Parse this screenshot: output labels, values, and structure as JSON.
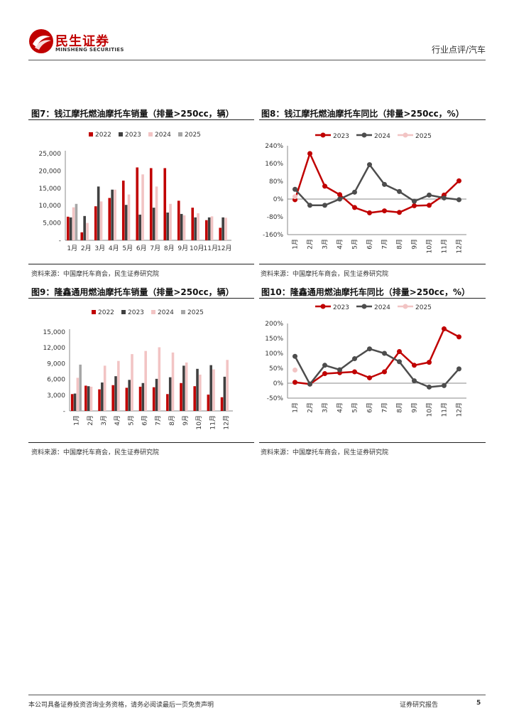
{
  "header": {
    "brand_cn": "民生证券",
    "brand_en": "MINSHENG SECURITIES",
    "category": "行业点评/汽车"
  },
  "colors": {
    "y2022": "#c00000",
    "y2023_bar": "#404040",
    "y2024_bar": "#f2c4c4",
    "y2025_bar": "#a6a6a6",
    "line2023": "#c00000",
    "line2024": "#4d4d4d",
    "line2025": "#f2c4c4"
  },
  "figures": {
    "fig7": {
      "title": "图7：钱江摩托燃油摩托车销量（排量>250cc，辆）",
      "source": "资料来源：中国摩托车商会，民生证券研究院"
    },
    "fig8": {
      "title": "图8：钱江摩托燃油摩托车同比（排量>250cc，%）",
      "source": "资料来源：中国摩托车商会，民生证券研究院"
    },
    "fig9": {
      "title": "图9：隆鑫通用燃油摩托车销量（排量>250cc，辆）",
      "source": "资料来源：中国摩托车商会，民生证券研究院"
    },
    "fig10": {
      "title": "图10：隆鑫通用燃油摩托车同比（排量>250cc，%）",
      "source": "资料来源：中国摩托车商会，民生证券研究院"
    }
  },
  "chart_data": [
    {
      "id": "fig7",
      "type": "bar",
      "title": "图7：钱江摩托燃油摩托车销量（排量>250cc，辆）",
      "categories": [
        "1月",
        "2月",
        "3月",
        "4月",
        "5月",
        "6月",
        "7月",
        "8月",
        "9月",
        "10月",
        "11月",
        "12月"
      ],
      "series": [
        {
          "name": "2022",
          "color_key": "y2022",
          "values": [
            6800,
            2300,
            9800,
            12200,
            17200,
            21000,
            20800,
            20800,
            11400,
            9400,
            5800,
            3600
          ]
        },
        {
          "name": "2023",
          "color_key": "y2023_bar",
          "values": [
            6600,
            7000,
            15500,
            14600,
            10200,
            7400,
            9400,
            8000,
            7600,
            6600,
            6600,
            6600
          ]
        },
        {
          "name": "2024",
          "color_key": "y2024_bar",
          "values": [
            9500,
            5000,
            11200,
            14600,
            13200,
            19000,
            15500,
            10500,
            7200,
            7800,
            6900,
            6500
          ]
        },
        {
          "name": "2025",
          "color_key": "y2025_bar",
          "values": [
            10500,
            null,
            null,
            null,
            null,
            null,
            null,
            null,
            null,
            null,
            null,
            null
          ]
        }
      ],
      "yticks": [
        {
          "v": 0,
          "label": "-"
        },
        {
          "v": 5000,
          "label": "5,000"
        },
        {
          "v": 10000,
          "label": "10,000"
        },
        {
          "v": 15000,
          "label": "15,000"
        },
        {
          "v": 20000,
          "label": "20,000"
        },
        {
          "v": 25000,
          "label": "25,000"
        }
      ],
      "ylim": [
        0,
        25000
      ],
      "legend_position": "top-center",
      "xlabel_rotated": false
    },
    {
      "id": "fig8",
      "type": "line",
      "title": "图8：钱江摩托燃油摩托车同比（排量>250cc，%）",
      "categories": [
        "1月",
        "2月",
        "3月",
        "4月",
        "5月",
        "6月",
        "7月",
        "8月",
        "9月",
        "10月",
        "11月",
        "12月"
      ],
      "series": [
        {
          "name": "2023",
          "color_key": "line2023",
          "values": [
            -3,
            205,
            58,
            20,
            -38,
            -62,
            -53,
            -60,
            -30,
            -28,
            18,
            82
          ]
        },
        {
          "name": "2024",
          "color_key": "line2024",
          "values": [
            44,
            -28,
            -28,
            0,
            31,
            155,
            66,
            34,
            -10,
            18,
            5,
            -3
          ]
        },
        {
          "name": "2025",
          "color_key": "line2025",
          "values": [
            11,
            null,
            null,
            null,
            null,
            null,
            null,
            null,
            null,
            null,
            null,
            null
          ]
        }
      ],
      "yticks": [
        {
          "v": -160,
          "label": "-160%"
        },
        {
          "v": -80,
          "label": "-80%"
        },
        {
          "v": 0,
          "label": "0%"
        },
        {
          "v": 80,
          "label": "80%"
        },
        {
          "v": 160,
          "label": "160%"
        },
        {
          "v": 240,
          "label": "240%"
        }
      ],
      "ylim": [
        -160,
        240
      ],
      "legend_position": "top-center",
      "xlabel_rotated": true
    },
    {
      "id": "fig9",
      "type": "bar",
      "title": "图9：隆鑫通用燃油摩托车销量（排量>250cc，辆）",
      "categories": [
        "1月",
        "2月",
        "3月",
        "4月",
        "5月",
        "6月",
        "7月",
        "8月",
        "9月",
        "10月",
        "11月",
        "12月"
      ],
      "series": [
        {
          "name": "2022",
          "color_key": "y2022",
          "values": [
            3200,
            4800,
            4100,
            4900,
            4400,
            4600,
            4500,
            3200,
            5300,
            4700,
            3100,
            2600
          ]
        },
        {
          "name": "2023",
          "color_key": "y2023_bar",
          "values": [
            3300,
            4700,
            5400,
            6600,
            5900,
            5300,
            6100,
            6400,
            8600,
            8000,
            8700,
            6500
          ]
        },
        {
          "name": "2024",
          "color_key": "y2024_bar",
          "values": [
            6300,
            4600,
            8600,
            9500,
            10800,
            11400,
            12100,
            11100,
            9200,
            6900,
            7900,
            9700
          ]
        },
        {
          "name": "2025",
          "color_key": "y2025_bar",
          "values": [
            8800,
            null,
            null,
            null,
            null,
            null,
            null,
            null,
            null,
            null,
            null,
            null
          ]
        }
      ],
      "yticks": [
        {
          "v": 0,
          "label": "-"
        },
        {
          "v": 3000,
          "label": "3,000"
        },
        {
          "v": 6000,
          "label": "6,000"
        },
        {
          "v": 9000,
          "label": "9,000"
        },
        {
          "v": 12000,
          "label": "12,000"
        },
        {
          "v": 15000,
          "label": "15,000"
        }
      ],
      "ylim": [
        0,
        15000
      ],
      "legend_position": "top-center",
      "xlabel_rotated": true
    },
    {
      "id": "fig10",
      "type": "line",
      "title": "图10：隆鑫通用燃油摩托车同比（排量>250cc，%）",
      "categories": [
        "1月",
        "2月",
        "3月",
        "4月",
        "5月",
        "6月",
        "7月",
        "8月",
        "9月",
        "10月",
        "11月",
        "12月"
      ],
      "series": [
        {
          "name": "2023",
          "color_key": "line2023",
          "values": [
            3,
            -3,
            32,
            35,
            38,
            18,
            38,
            106,
            60,
            70,
            182,
            155
          ]
        },
        {
          "name": "2024",
          "color_key": "line2024",
          "values": [
            90,
            -3,
            60,
            45,
            82,
            115,
            100,
            72,
            8,
            -13,
            -8,
            48
          ]
        },
        {
          "name": "2025",
          "color_key": "line2025",
          "values": [
            44,
            null,
            null,
            null,
            null,
            null,
            null,
            null,
            null,
            null,
            null,
            null
          ]
        }
      ],
      "yticks": [
        {
          "v": -50,
          "label": "-50%"
        },
        {
          "v": 0,
          "label": "0%"
        },
        {
          "v": 50,
          "label": "50%"
        },
        {
          "v": 100,
          "label": "100%"
        },
        {
          "v": 150,
          "label": "150%"
        },
        {
          "v": 200,
          "label": "200%"
        }
      ],
      "ylim": [
        -50,
        200
      ],
      "legend_position": "top-center",
      "xlabel_rotated": true
    }
  ],
  "footer": {
    "disclaimer": "本公司具备证券投资咨询业务资格，请务必阅读最后一页免责声明",
    "report_type": "证券研究报告",
    "page_number": "5"
  }
}
